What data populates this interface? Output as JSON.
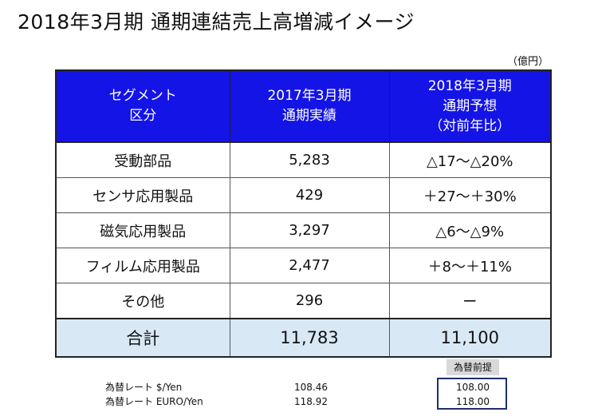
{
  "title": "2018年3月期 通期連結売上高増減イメージ",
  "unit": "（億円）",
  "table": {
    "headers": [
      [
        "セグメント",
        "区分"
      ],
      [
        "2017年3月期",
        "通期実績"
      ],
      [
        "2018年3月期",
        "通期予想",
        "（対前年比）"
      ]
    ],
    "rows": [
      {
        "segment": "受動部品",
        "actual_2017": "5,283",
        "forecast_2018": "△17～△20%"
      },
      {
        "segment": "センサ応用製品",
        "actual_2017": "429",
        "forecast_2018": "＋27～＋30%"
      },
      {
        "segment": "磁気応用製品",
        "actual_2017": "3,297",
        "forecast_2018": "△6～△9%"
      },
      {
        "segment": "フィルム応用製品",
        "actual_2017": "2,477",
        "forecast_2018": "＋8～＋11%"
      },
      {
        "segment": "その他",
        "actual_2017": "296",
        "forecast_2018": "ー"
      }
    ],
    "total": {
      "segment": "合計",
      "actual_2017": "11,783",
      "forecast_2018": "11,100"
    }
  },
  "fx": {
    "assumption_label": "為替前提",
    "rows": [
      {
        "label": "為替レート $/Yen",
        "actual_2017": "108.46",
        "forecast_2018": "108.00"
      },
      {
        "label": "為替レート EURO/Yen",
        "actual_2017": "118.92",
        "forecast_2018": "118.00"
      }
    ]
  },
  "colors": {
    "header_bg": "#1414e6",
    "total_bg": "#d9e8f5",
    "badge_bg": "#d9d9d9",
    "fx_box_border": "#1f2f66"
  }
}
